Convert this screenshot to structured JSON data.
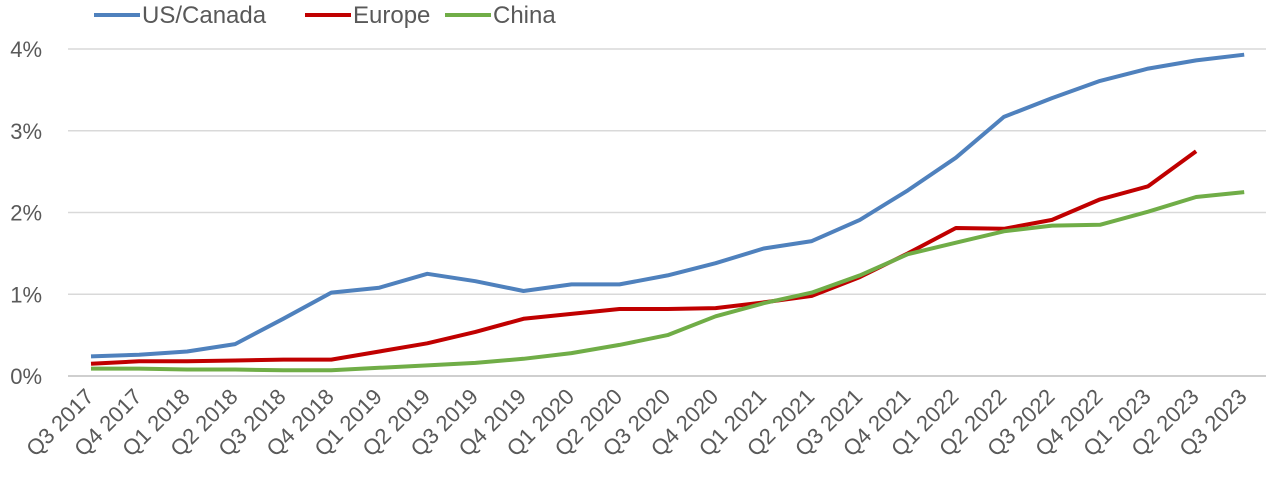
{
  "chart_data": {
    "type": "line",
    "title": "",
    "xlabel": "",
    "ylabel": "",
    "ylim": [
      0,
      4.2
    ],
    "y_ticks": [
      0,
      1,
      2,
      3,
      4
    ],
    "y_tick_labels": [
      "0%",
      "1%",
      "2%",
      "3%",
      "4%"
    ],
    "grid": "horizontal",
    "legend_position": "top-left",
    "categories": [
      "Q3 2017",
      "Q4 2017",
      "Q1 2018",
      "Q2 2018",
      "Q3 2018",
      "Q4 2018",
      "Q1 2019",
      "Q2 2019",
      "Q3 2019",
      "Q4 2019",
      "Q1 2020",
      "Q2 2020",
      "Q3 2020",
      "Q4 2020",
      "Q1 2021",
      "Q2 2021",
      "Q3 2021",
      "Q4 2021",
      "Q1 2022",
      "Q2 2022",
      "Q3 2022",
      "Q4 2022",
      "Q1 2023",
      "Q2 2023",
      "Q3 2023"
    ],
    "series": [
      {
        "name": "US/Canada",
        "color": "#4f81bd",
        "values": [
          0.24,
          0.26,
          0.3,
          0.39,
          0.7,
          1.02,
          1.08,
          1.25,
          1.16,
          1.04,
          1.12,
          1.12,
          1.23,
          1.38,
          1.56,
          1.65,
          1.91,
          2.27,
          2.67,
          3.17,
          3.4,
          3.61,
          3.76,
          3.86,
          3.93
        ]
      },
      {
        "name": "Europe",
        "color": "#c00000",
        "values": [
          0.15,
          0.18,
          0.18,
          0.19,
          0.2,
          0.2,
          0.3,
          0.4,
          0.54,
          0.7,
          0.76,
          0.82,
          0.82,
          0.83,
          0.9,
          0.98,
          1.21,
          1.5,
          1.81,
          1.8,
          1.91,
          2.16,
          2.32,
          2.75,
          null
        ]
      },
      {
        "name": "China",
        "color": "#70ad47",
        "values": [
          0.09,
          0.09,
          0.08,
          0.08,
          0.07,
          0.07,
          0.1,
          0.13,
          0.16,
          0.21,
          0.28,
          0.38,
          0.5,
          0.73,
          0.89,
          1.02,
          1.23,
          1.49,
          1.63,
          1.77,
          1.84,
          1.85,
          2.01,
          2.19,
          2.25
        ]
      }
    ]
  },
  "colors": {
    "gridline": "#d9d9d9",
    "axis": "#bfbfbf",
    "text": "#595959"
  }
}
